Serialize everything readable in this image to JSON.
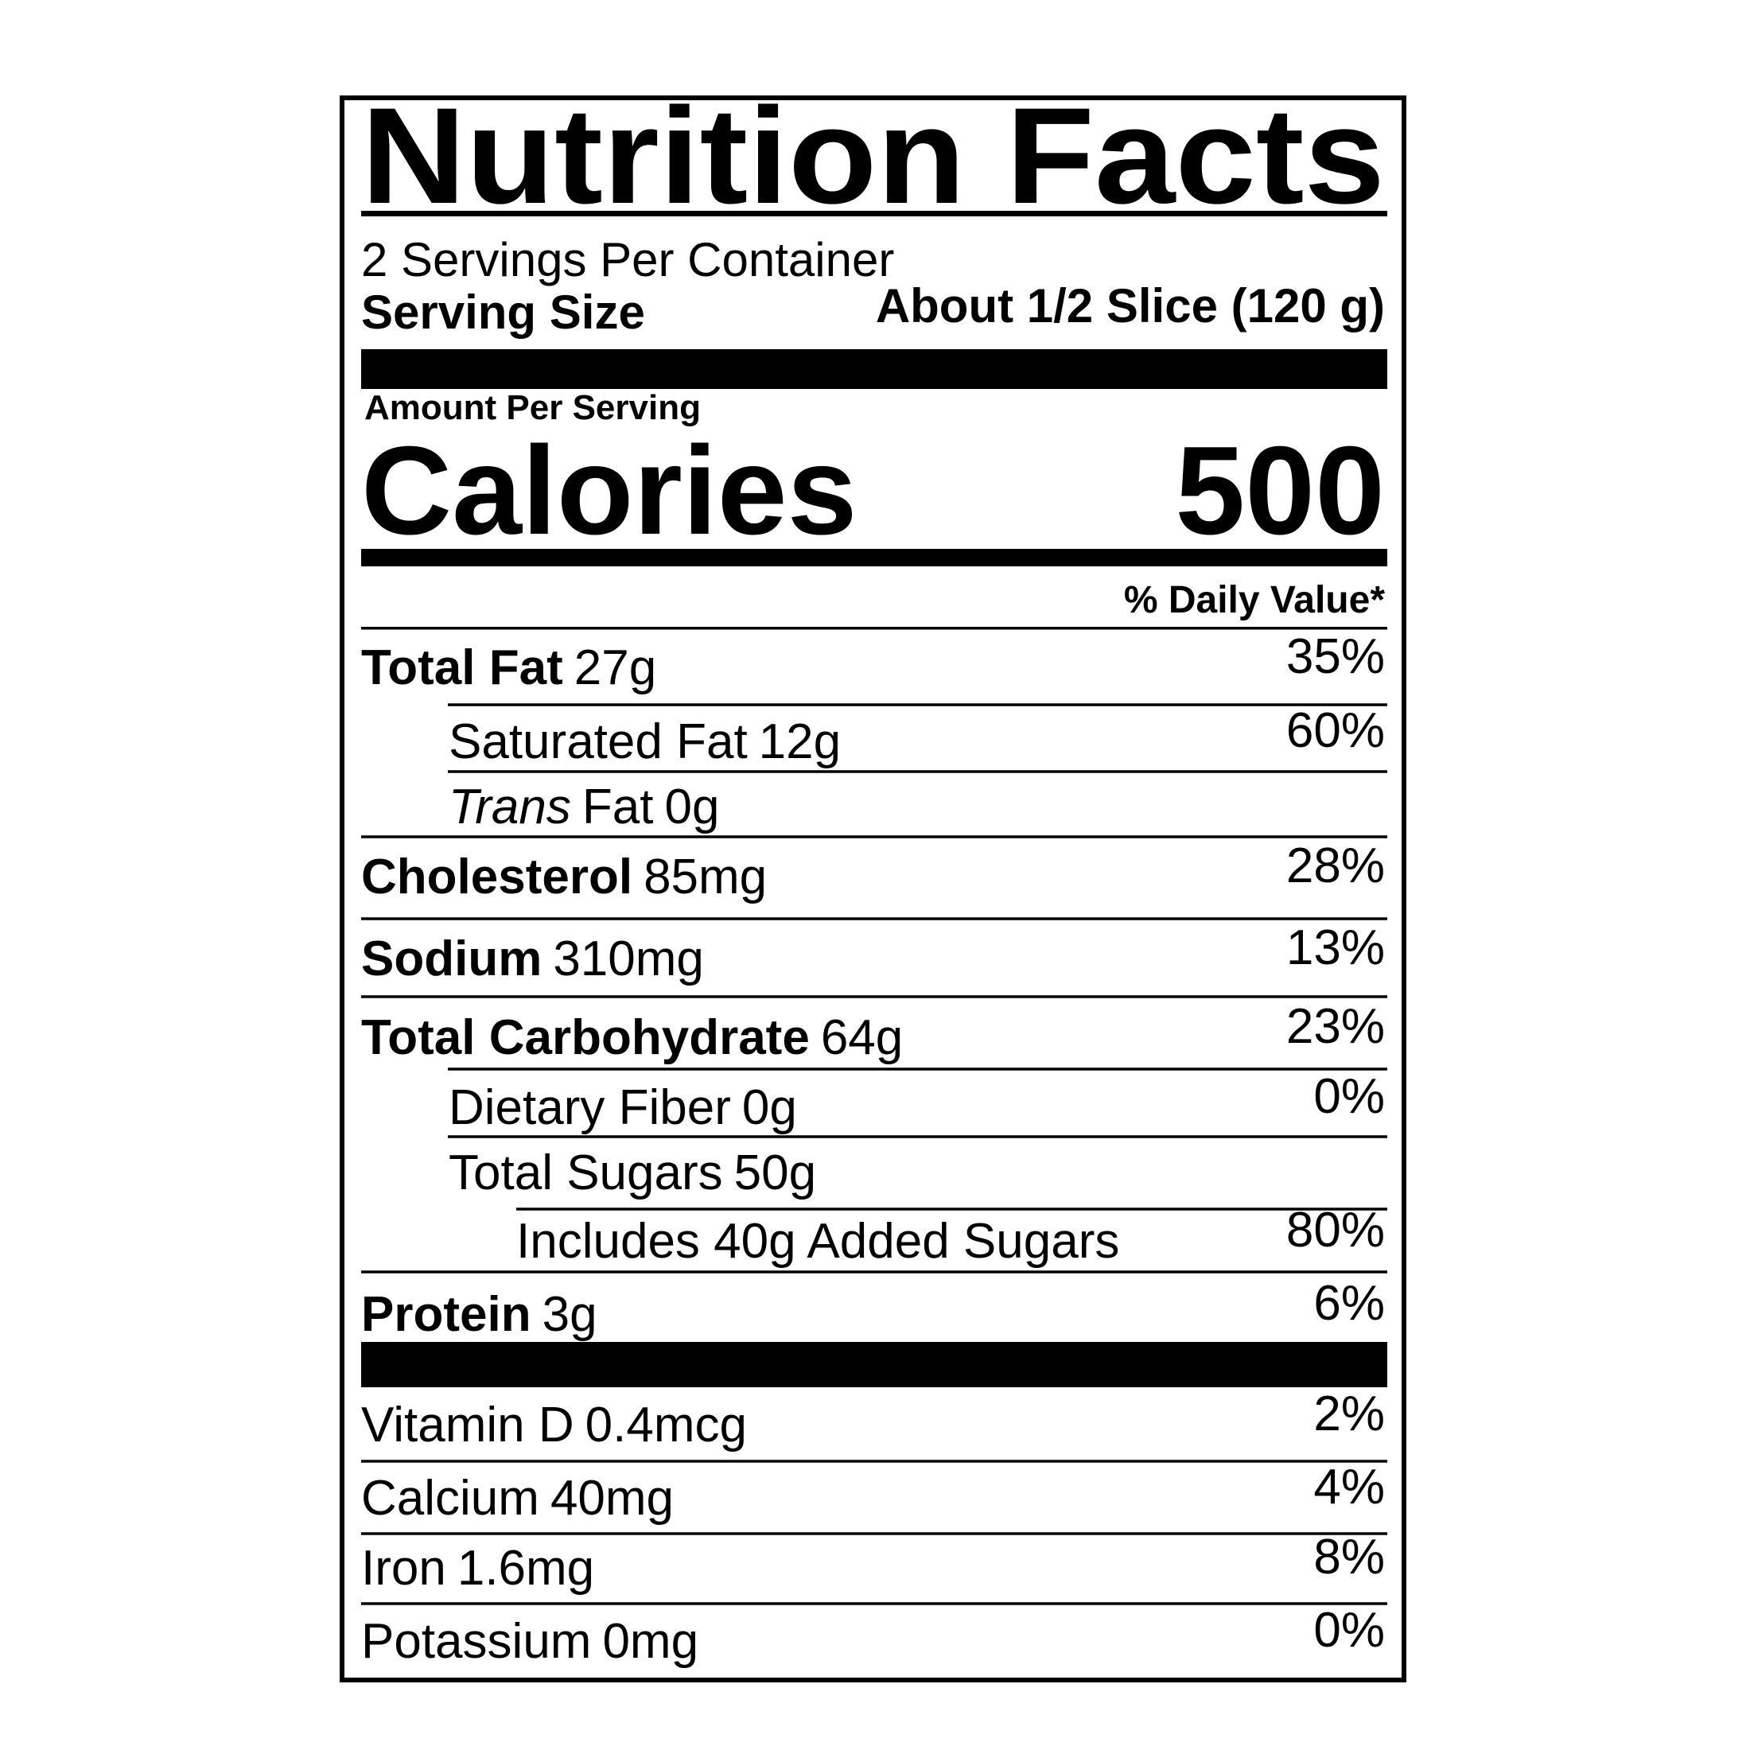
{
  "label": {
    "title": "Nutrition Facts",
    "servings": "2 Servings Per Container",
    "serving_size_label": "Serving Size",
    "serving_size_value": "About 1/2 Slice (120 g)",
    "amount_per_serving": "Amount Per Serving",
    "calories_label": "Calories",
    "calories_value": "500",
    "daily_value_header": "% Daily Value*",
    "nutrients": [
      {
        "name": "Total Fat",
        "amount": "27g",
        "dv": "35%"
      },
      {
        "name": "Saturated Fat",
        "amount": "12g",
        "dv": "60%"
      },
      {
        "name_italic": "Trans",
        "name": "Fat",
        "amount": "0g"
      },
      {
        "name": "Cholesterol",
        "amount": "85mg",
        "dv": "28%"
      },
      {
        "name": "Sodium",
        "amount": "310mg",
        "dv": "13%"
      },
      {
        "name": "Total Carbohydrate",
        "amount": "64g",
        "dv": "23%"
      },
      {
        "name": "Dietary Fiber",
        "amount": "0g",
        "dv": "0%"
      },
      {
        "name": "Total Sugars",
        "amount": "50g"
      },
      {
        "name": "Includes 40g Added Sugars",
        "dv": "80%"
      },
      {
        "name": "Protein",
        "amount": "3g",
        "dv": "6%"
      }
    ],
    "vitamins": [
      {
        "name": "Vitamin D",
        "amount": "0.4mcg",
        "dv": "2%"
      },
      {
        "name": "Calcium",
        "amount": "40mg",
        "dv": "4%"
      },
      {
        "name": "Iron",
        "amount": "1.6mg",
        "dv": "8%"
      },
      {
        "name": "Potassium",
        "amount": "0mg",
        "dv": "0%"
      }
    ]
  }
}
